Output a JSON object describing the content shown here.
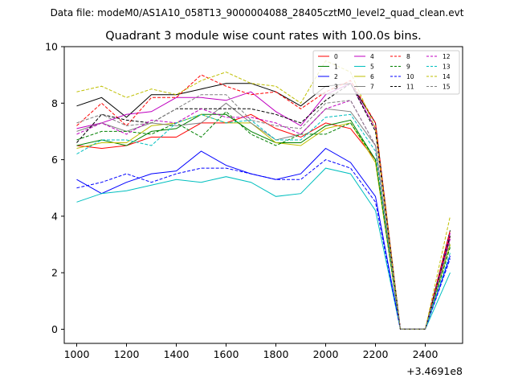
{
  "figure": {
    "suptitle": "Data file: modeM0/AS1A10_058T13_9000004088_28405cztM0_level2_quad_clean.evt"
  },
  "chart_data": {
    "type": "line",
    "title": "Quadrant 3 module wise count rates with 100.0s bins.",
    "xlabel": "",
    "ylabel": "",
    "x_offset_label": "+3.4691e8",
    "x": [
      1000,
      1100,
      1200,
      1300,
      1400,
      1500,
      1600,
      1700,
      1800,
      1900,
      2000,
      2100,
      2200,
      2300,
      2400,
      2500
    ],
    "xlim": [
      950,
      2550
    ],
    "ylim": [
      -0.5,
      10
    ],
    "xticks": [
      1000,
      1200,
      1400,
      1600,
      1800,
      2000,
      2200,
      2400
    ],
    "yticks": [
      0,
      2,
      4,
      6,
      8,
      10
    ],
    "legend_position": "top-right",
    "series": [
      {
        "name": "0",
        "color": "#ff0000",
        "dash": false,
        "values": [
          6.5,
          6.4,
          6.5,
          6.8,
          6.8,
          7.3,
          7.3,
          7.6,
          7.1,
          6.8,
          7.3,
          7.1,
          6.0,
          0,
          0,
          3.3
        ]
      },
      {
        "name": "1",
        "color": "#008000",
        "dash": false,
        "values": [
          6.5,
          6.7,
          6.5,
          7.0,
          7.1,
          7.6,
          7.6,
          7.0,
          6.6,
          6.6,
          7.2,
          7.4,
          6.0,
          0,
          0,
          3.0
        ]
      },
      {
        "name": "2",
        "color": "#0000ff",
        "dash": false,
        "values": [
          5.3,
          4.8,
          5.2,
          5.5,
          5.6,
          6.3,
          5.8,
          5.5,
          5.3,
          5.5,
          6.4,
          5.9,
          4.7,
          0,
          0,
          2.6
        ]
      },
      {
        "name": "3",
        "color": "#000000",
        "dash": false,
        "values": [
          7.9,
          8.2,
          7.5,
          8.3,
          8.3,
          8.5,
          8.7,
          8.7,
          8.4,
          7.9,
          8.6,
          8.7,
          7.3,
          0,
          0,
          3.5
        ]
      },
      {
        "name": "4",
        "color": "#c000c0",
        "dash": false,
        "values": [
          7.1,
          7.3,
          7.6,
          7.7,
          8.2,
          8.2,
          8.1,
          8.4,
          7.7,
          7.2,
          8.3,
          8.7,
          7.1,
          0,
          0,
          3.4
        ]
      },
      {
        "name": "5",
        "color": "#00bfbf",
        "dash": false,
        "values": [
          4.5,
          4.8,
          4.9,
          5.1,
          5.3,
          5.2,
          5.4,
          5.2,
          4.7,
          4.8,
          5.7,
          5.5,
          4.2,
          0,
          0,
          2.0
        ]
      },
      {
        "name": "6",
        "color": "#bfbf00",
        "dash": false,
        "values": [
          6.4,
          6.6,
          6.6,
          7.2,
          7.3,
          7.6,
          7.3,
          7.3,
          6.6,
          6.5,
          7.1,
          7.3,
          5.9,
          0,
          0,
          3.0
        ]
      },
      {
        "name": "7",
        "color": "#808080",
        "dash": false,
        "values": [
          7.0,
          7.3,
          7.0,
          7.3,
          7.2,
          7.3,
          8.0,
          7.3,
          6.7,
          6.9,
          7.8,
          7.7,
          6.5,
          0,
          0,
          3.2
        ]
      },
      {
        "name": "8",
        "color": "#ff0000",
        "dash": true,
        "values": [
          7.2,
          8.0,
          7.2,
          8.2,
          8.2,
          9.0,
          8.6,
          8.3,
          8.4,
          7.8,
          8.4,
          8.8,
          7.3,
          0,
          0,
          3.5
        ]
      },
      {
        "name": "9",
        "color": "#008000",
        "dash": true,
        "values": [
          6.7,
          7.0,
          7.0,
          6.9,
          7.3,
          6.8,
          7.7,
          6.9,
          6.5,
          6.9,
          6.9,
          7.3,
          6.0,
          0,
          0,
          2.9
        ]
      },
      {
        "name": "10",
        "color": "#0000ff",
        "dash": true,
        "values": [
          5.0,
          5.2,
          5.5,
          5.2,
          5.5,
          5.7,
          5.7,
          5.5,
          5.3,
          5.3,
          6.0,
          5.7,
          4.5,
          0,
          0,
          2.5
        ]
      },
      {
        "name": "11",
        "color": "#000000",
        "dash": true,
        "values": [
          6.6,
          7.6,
          7.4,
          7.3,
          7.8,
          7.8,
          7.8,
          7.8,
          7.6,
          7.3,
          8.1,
          8.7,
          7.0,
          0,
          0,
          3.3
        ]
      },
      {
        "name": "12",
        "color": "#c000c0",
        "dash": true,
        "values": [
          6.9,
          7.3,
          6.9,
          7.4,
          7.3,
          7.8,
          7.5,
          7.5,
          7.3,
          6.9,
          7.8,
          8.1,
          6.5,
          0,
          0,
          3.2
        ]
      },
      {
        "name": "13",
        "color": "#00bfbf",
        "dash": true,
        "values": [
          6.2,
          6.7,
          6.7,
          6.5,
          7.3,
          7.6,
          7.3,
          7.4,
          6.7,
          6.7,
          7.5,
          7.6,
          6.3,
          0,
          0,
          2.7
        ]
      },
      {
        "name": "14",
        "color": "#bfbf00",
        "dash": true,
        "values": [
          8.4,
          8.6,
          8.2,
          8.5,
          8.3,
          8.8,
          9.1,
          8.7,
          8.6,
          8.0,
          9.5,
          9.1,
          7.1,
          0,
          0,
          4.0
        ]
      },
      {
        "name": "15",
        "color": "#808080",
        "dash": true,
        "values": [
          7.3,
          7.6,
          7.2,
          7.3,
          7.8,
          8.3,
          8.3,
          7.4,
          7.2,
          7.1,
          8.0,
          8.1,
          6.5,
          0,
          0,
          3.1
        ]
      }
    ]
  }
}
